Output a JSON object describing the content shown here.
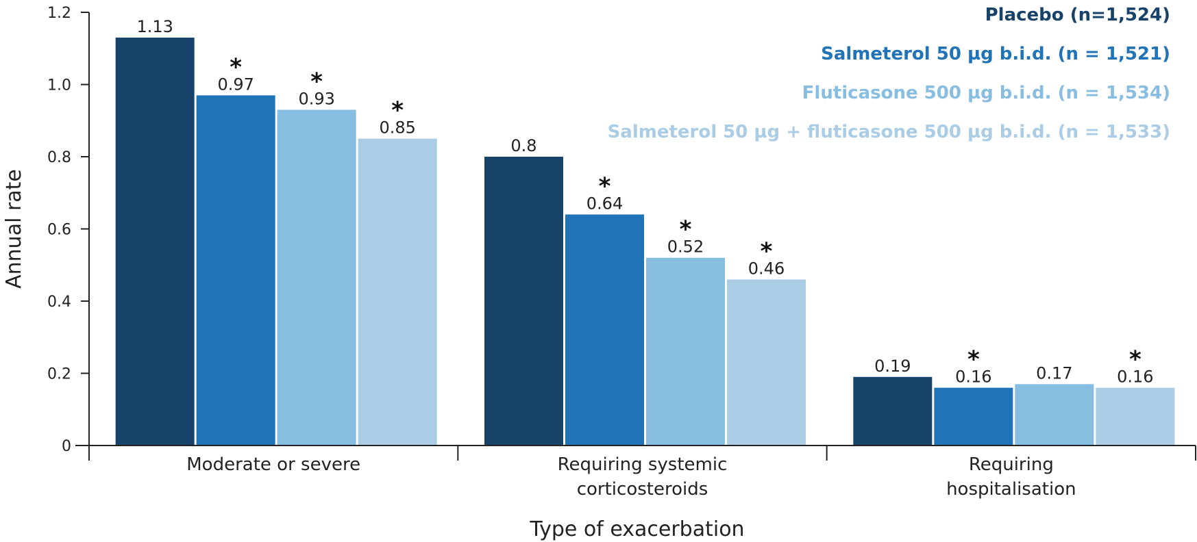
{
  "chart_data": {
    "type": "bar",
    "xlabel": "Type of exacerbation",
    "ylabel": "Annual rate",
    "ylim": [
      0,
      1.2
    ],
    "yticks": [
      "0",
      "0.2",
      "0.4",
      "0.6",
      "0.8",
      "1.0",
      "1.2"
    ],
    "legend_position": "top-right",
    "categories": [
      [
        "Moderate or severe"
      ],
      [
        "Requiring systemic",
        "corticosteroids"
      ],
      [
        "Requiring",
        "hospitalisation"
      ]
    ],
    "series": [
      {
        "name": "Placebo (n=1,524)",
        "color": "#17436b",
        "values": [
          1.13,
          0.8,
          0.19
        ],
        "labels": [
          "1.13",
          "0.8",
          "0.19"
        ],
        "significant": [
          false,
          false,
          false
        ]
      },
      {
        "name": "Salmeterol 50 µg b.i.d. (n = 1,521)",
        "color": "#2173b7",
        "values": [
          0.97,
          0.64,
          0.16
        ],
        "labels": [
          "0.97",
          "0.64",
          "0.16"
        ],
        "significant": [
          true,
          true,
          true
        ]
      },
      {
        "name": "Fluticasone 500 µg b.i.d. (n = 1,534)",
        "color": "#88bde2",
        "values": [
          0.93,
          0.52,
          0.17
        ],
        "labels": [
          "0.93",
          "0.52",
          "0.17"
        ],
        "significant": [
          true,
          true,
          false
        ]
      },
      {
        "name": "Salmeterol 50 µg + fluticasone 500 µg b.i.d. (n = 1,533)",
        "color": "#abcce5",
        "values": [
          0.85,
          0.46,
          0.16
        ],
        "labels": [
          "0.85",
          "0.46",
          "0.16"
        ],
        "significant": [
          true,
          true,
          true
        ]
      }
    ],
    "significance_marker": "*"
  }
}
